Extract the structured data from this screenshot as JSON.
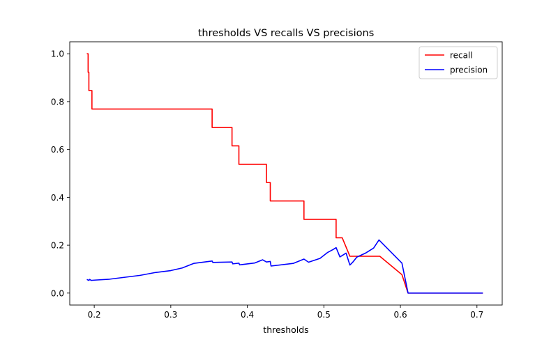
{
  "chart_data": {
    "type": "line",
    "title": "thresholds VS recalls VS precisions",
    "xlabel": "thresholds",
    "ylabel": "",
    "xlim": [
      0.168,
      0.733
    ],
    "ylim": [
      -0.05,
      1.05
    ],
    "xticks": [
      0.2,
      0.3,
      0.4,
      0.5,
      0.6,
      0.7
    ],
    "xtick_labels": [
      "0.2",
      "0.3",
      "0.4",
      "0.5",
      "0.6",
      "0.7"
    ],
    "yticks": [
      0.0,
      0.2,
      0.4,
      0.6,
      0.8,
      1.0
    ],
    "ytick_labels": [
      "0.0",
      "0.2",
      "0.4",
      "0.6",
      "0.8",
      "1.0"
    ],
    "grid": false,
    "legend_position": "top-right",
    "series": [
      {
        "name": "recall",
        "color": "#ff0000",
        "points": [
          [
            0.191,
            1.0
          ],
          [
            0.192,
            1.0
          ],
          [
            0.192,
            0.923
          ],
          [
            0.193,
            0.923
          ],
          [
            0.193,
            0.846
          ],
          [
            0.197,
            0.846
          ],
          [
            0.197,
            0.769
          ],
          [
            0.354,
            0.769
          ],
          [
            0.354,
            0.692
          ],
          [
            0.38,
            0.692
          ],
          [
            0.38,
            0.615
          ],
          [
            0.389,
            0.615
          ],
          [
            0.389,
            0.538
          ],
          [
            0.425,
            0.538
          ],
          [
            0.425,
            0.462
          ],
          [
            0.43,
            0.462
          ],
          [
            0.43,
            0.385
          ],
          [
            0.474,
            0.385
          ],
          [
            0.474,
            0.308
          ],
          [
            0.516,
            0.308
          ],
          [
            0.516,
            0.231
          ],
          [
            0.524,
            0.231
          ],
          [
            0.534,
            0.154
          ],
          [
            0.573,
            0.154
          ],
          [
            0.602,
            0.077
          ],
          [
            0.61,
            0.0
          ],
          [
            0.707,
            0.0
          ]
        ]
      },
      {
        "name": "precision",
        "color": "#0000ff",
        "points": [
          [
            0.191,
            0.056
          ],
          [
            0.193,
            0.053
          ],
          [
            0.194,
            0.057
          ],
          [
            0.196,
            0.053
          ],
          [
            0.2,
            0.054
          ],
          [
            0.22,
            0.058
          ],
          [
            0.24,
            0.066
          ],
          [
            0.26,
            0.074
          ],
          [
            0.28,
            0.086
          ],
          [
            0.3,
            0.094
          ],
          [
            0.315,
            0.105
          ],
          [
            0.33,
            0.124
          ],
          [
            0.354,
            0.134
          ],
          [
            0.355,
            0.128
          ],
          [
            0.38,
            0.13
          ],
          [
            0.381,
            0.122
          ],
          [
            0.389,
            0.125
          ],
          [
            0.39,
            0.118
          ],
          [
            0.41,
            0.126
          ],
          [
            0.42,
            0.139
          ],
          [
            0.425,
            0.13
          ],
          [
            0.43,
            0.132
          ],
          [
            0.431,
            0.113
          ],
          [
            0.46,
            0.124
          ],
          [
            0.474,
            0.142
          ],
          [
            0.48,
            0.129
          ],
          [
            0.495,
            0.145
          ],
          [
            0.505,
            0.17
          ],
          [
            0.512,
            0.182
          ],
          [
            0.516,
            0.19
          ],
          [
            0.521,
            0.151
          ],
          [
            0.529,
            0.167
          ],
          [
            0.534,
            0.117
          ],
          [
            0.538,
            0.13
          ],
          [
            0.543,
            0.15
          ],
          [
            0.555,
            0.168
          ],
          [
            0.565,
            0.188
          ],
          [
            0.572,
            0.222
          ],
          [
            0.602,
            0.125
          ],
          [
            0.61,
            0.0
          ],
          [
            0.707,
            0.0
          ]
        ]
      }
    ]
  }
}
